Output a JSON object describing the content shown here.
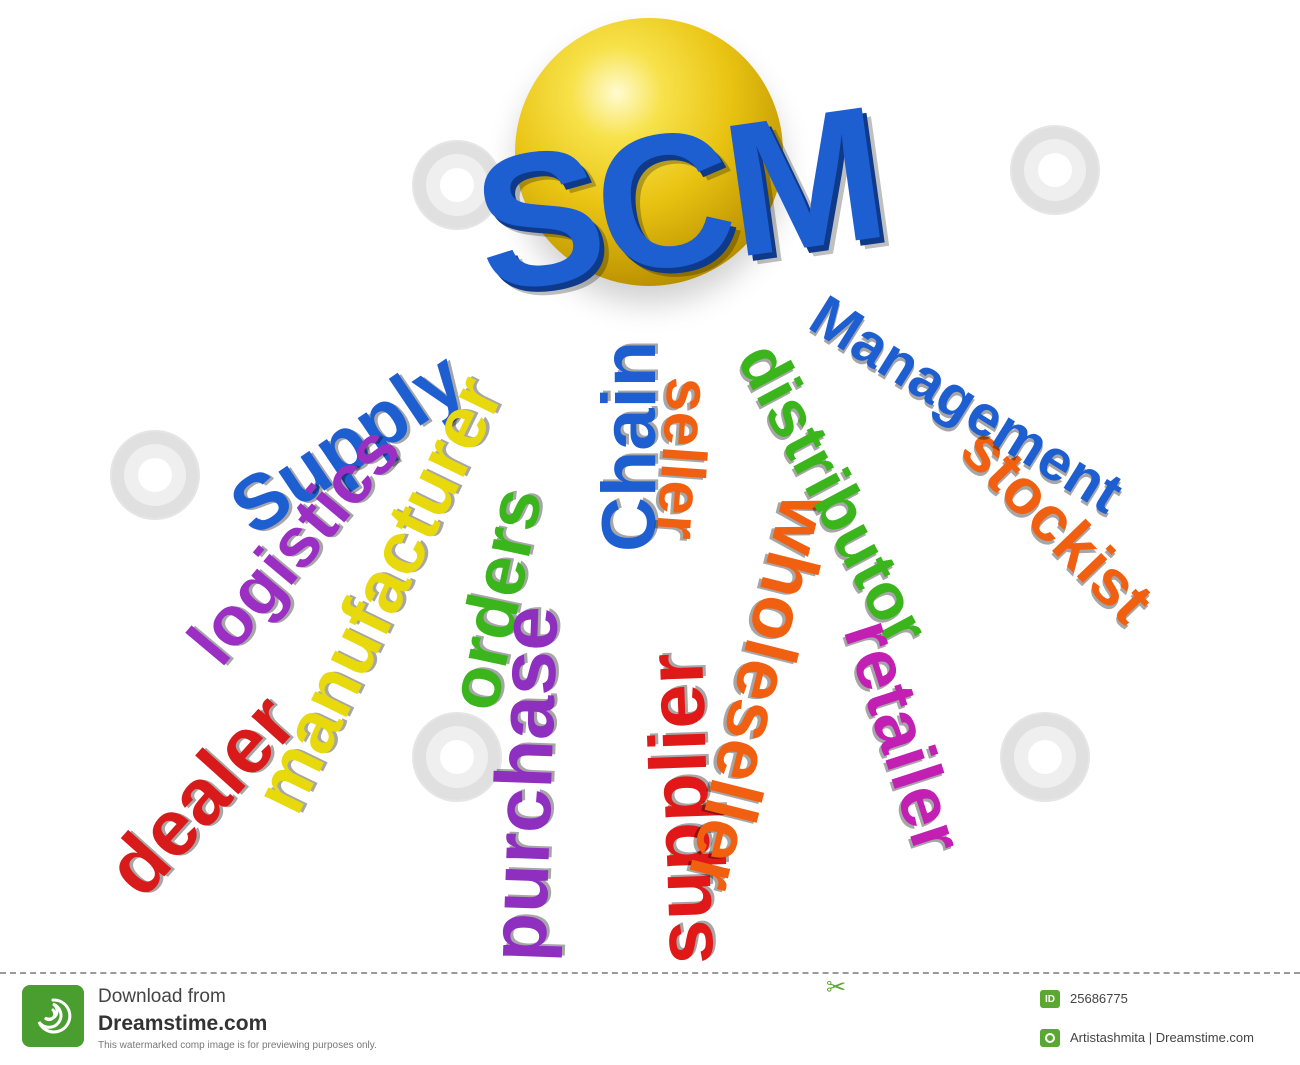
{
  "artwork": {
    "sphere_color": "#f2cf1a",
    "title": {
      "text": "SCM",
      "color": "#1d5fd1"
    },
    "words": [
      {
        "text": "Supply",
        "color": "#1d5fd1"
      },
      {
        "text": "Chain",
        "color": "#1d5fd1"
      },
      {
        "text": "Management",
        "color": "#1d5fd1"
      },
      {
        "text": "logistics",
        "color": "#9b2fc4"
      },
      {
        "text": "manufacturer",
        "color": "#e8d90d"
      },
      {
        "text": "dealer",
        "color": "#d81a1a"
      },
      {
        "text": "orders",
        "color": "#3ab51c"
      },
      {
        "text": "purchase",
        "color": "#8e2fc0"
      },
      {
        "text": "supplier",
        "color": "#e01818"
      },
      {
        "text": "seller",
        "color": "#f06010"
      },
      {
        "text": "wholeseller",
        "color": "#f06010"
      },
      {
        "text": "distributor",
        "color": "#3ab51c"
      },
      {
        "text": "stockist",
        "color": "#f06010"
      },
      {
        "text": "retailer",
        "color": "#c21fb3"
      }
    ]
  },
  "watermark": {
    "text": "dreamstime"
  },
  "footer": {
    "download_label": "Download from",
    "site_name": "Dreamstime.com",
    "notice": "This watermarked comp image is for previewing purposes only.",
    "id_badge": "ID",
    "image_id": "25686775",
    "author_credit": "Artistashmita | Dreamstime.com",
    "accent_color": "#5aa832"
  }
}
